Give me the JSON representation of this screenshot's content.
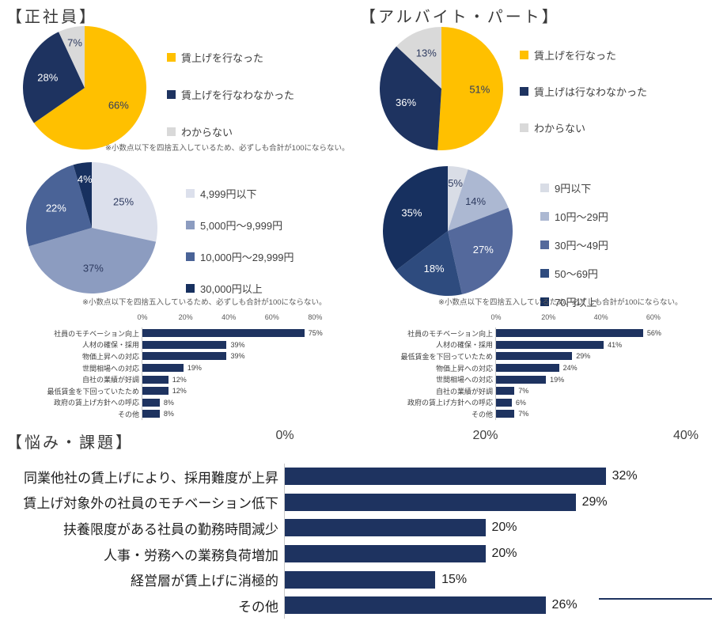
{
  "panels": {
    "seishain": {
      "title": "【正社員】"
    },
    "arbeit": {
      "title": "【アルバイト・パート】"
    },
    "nayami": {
      "title": "【悩み・課題】"
    }
  },
  "chart_data": [
    {
      "id": "seishain_raise_pie",
      "type": "pie",
      "panel": "正社員",
      "labels": [
        "賃上げを行なった",
        "賃上げを行なわなかった",
        "わからない"
      ],
      "values": [
        66,
        28,
        7
      ],
      "unit": "%",
      "colors": [
        "#FFC000",
        "#1E3360",
        "#D9D9D9"
      ],
      "legend_position": "right",
      "footnote": "※小数点以下を四捨五入しているため、必ずしも合計が100にならない。"
    },
    {
      "id": "seishain_raise_amount_pie",
      "type": "pie",
      "panel": "正社員",
      "labels": [
        "4,999円以下",
        "5,000円〜9,999円",
        "10,000円〜29,999円",
        "30,000円以上"
      ],
      "values": [
        25,
        37,
        22,
        4
      ],
      "unit": "%",
      "colors": [
        "#DCE0EC",
        "#8C9CC0",
        "#4A6397",
        "#17305F"
      ],
      "legend_position": "right",
      "footnote": "※小数点以下を四捨五入しているため、必ずしも合計が100にならない。"
    },
    {
      "id": "seishain_raise_reasons_bar",
      "type": "bar",
      "orientation": "horizontal",
      "panel": "正社員",
      "categories": [
        "社員のモチベーション向上",
        "人材の確保・採用",
        "物価上昇への対応",
        "世間相場への対応",
        "自社の業績が好調",
        "最低賃金を下回っていたため",
        "政府の賃上げ方針への呼応",
        "その他"
      ],
      "values": [
        75,
        39,
        39,
        19,
        12,
        12,
        8,
        8
      ],
      "unit": "%",
      "xlim": [
        0,
        80
      ],
      "ticks": [
        "0%",
        "20%",
        "40%",
        "60%",
        "80%"
      ],
      "bar_color": "#1E3360",
      "grid": false
    },
    {
      "id": "arbeit_raise_pie",
      "type": "pie",
      "panel": "アルバイト・パート",
      "labels": [
        "賃上げを行なった",
        "賃上げは行なわなかった",
        "わからない"
      ],
      "values": [
        51,
        36,
        13
      ],
      "unit": "%",
      "colors": [
        "#FFC000",
        "#1E3360",
        "#D9D9D9"
      ],
      "legend_position": "right"
    },
    {
      "id": "arbeit_raise_amount_pie",
      "type": "pie",
      "panel": "アルバイト・パート",
      "labels": [
        "9円以下",
        "10円〜29円",
        "30円〜49円",
        "50〜69円",
        "70円以上"
      ],
      "values": [
        5,
        14,
        27,
        18,
        35
      ],
      "unit": "%",
      "colors": [
        "#D9DDE6",
        "#ACB8D2",
        "#54699C",
        "#2E4B7E",
        "#17305F"
      ],
      "legend_position": "right",
      "footnote": "※小数点以下を四捨五入しているため、必ずしも合計が100にならない。"
    },
    {
      "id": "arbeit_raise_reasons_bar",
      "type": "bar",
      "orientation": "horizontal",
      "panel": "アルバイト・パート",
      "categories": [
        "社員のモチベーション向上",
        "人材の確保・採用",
        "最低賃金を下回っていたため",
        "物価上昇への対応",
        "世間相場への対応",
        "自社の業績が好調",
        "政府の賃上げ方針への呼応",
        "その他"
      ],
      "values": [
        56,
        41,
        29,
        24,
        19,
        7,
        6,
        7
      ],
      "unit": "%",
      "xlim": [
        0,
        60
      ],
      "ticks": [
        "0%",
        "20%",
        "40%",
        "60%"
      ],
      "bar_color": "#1E3360",
      "grid": false
    },
    {
      "id": "nayami_kadai_bar",
      "type": "bar",
      "orientation": "horizontal",
      "panel": "悩み・課題",
      "categories": [
        "同業他社の賃上げにより、採用難度が上昇",
        "賃上げ対象外の社員のモチベーション低下",
        "扶養限度がある社員の勤務時間減少",
        "人事・労務への業務負荷増加",
        "経営層が賃上げに消極的",
        "その他"
      ],
      "values": [
        32,
        29,
        20,
        20,
        15,
        26
      ],
      "unit": "%",
      "xlim": [
        0,
        40
      ],
      "ticks": [
        "0%",
        "20%",
        "40%"
      ],
      "bar_color": "#1E3360",
      "grid": false
    }
  ]
}
